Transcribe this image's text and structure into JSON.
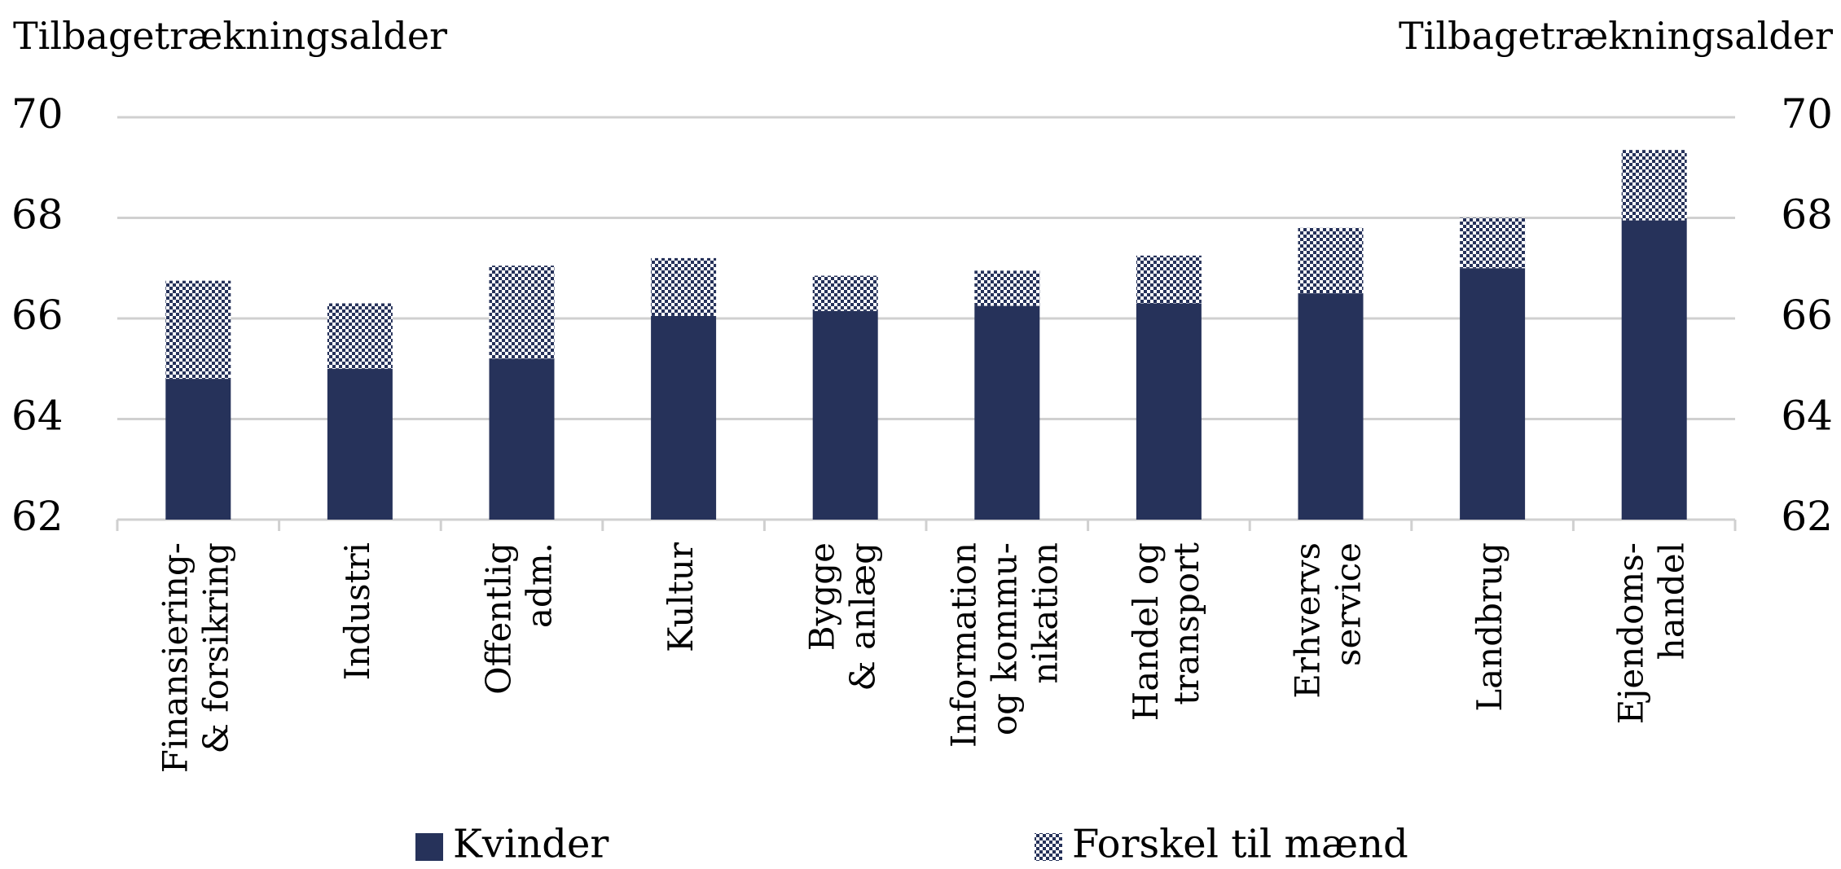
{
  "chart_data": {
    "type": "bar",
    "stacked": true,
    "y_label": "Tilbagetrækningsalder",
    "y2_label": "Tilbagetrækningsalder",
    "categories": [
      "Finansiering-\n& forsikring",
      "Industri",
      "Offentlig\nadm.",
      "Kultur",
      "Bygge\n& anlæg",
      "Information\nog kommu-\nnikation",
      "Handel og\ntransport",
      "Erhvervs\nservice",
      "Landbrug",
      "Ejendoms-\nhandel"
    ],
    "series": [
      {
        "name": "Kvinder",
        "color": "#26325a",
        "values": [
          64.8,
          65.0,
          65.2,
          66.05,
          66.15,
          66.25,
          66.3,
          66.5,
          67.0,
          67.95
        ]
      },
      {
        "name": "Forskel til mænd",
        "color": "#26325a",
        "pattern": "dots",
        "values": [
          1.95,
          1.3,
          1.85,
          1.15,
          0.7,
          0.7,
          0.95,
          1.3,
          1.0,
          1.4
        ]
      }
    ],
    "ylim": [
      62,
      70
    ],
    "yticks": [
      62,
      64,
      66,
      68,
      70
    ],
    "y2lim": [
      62,
      70
    ],
    "y2ticks": [
      62,
      64,
      66,
      68,
      70
    ],
    "grid": true,
    "legend": "bottom"
  }
}
